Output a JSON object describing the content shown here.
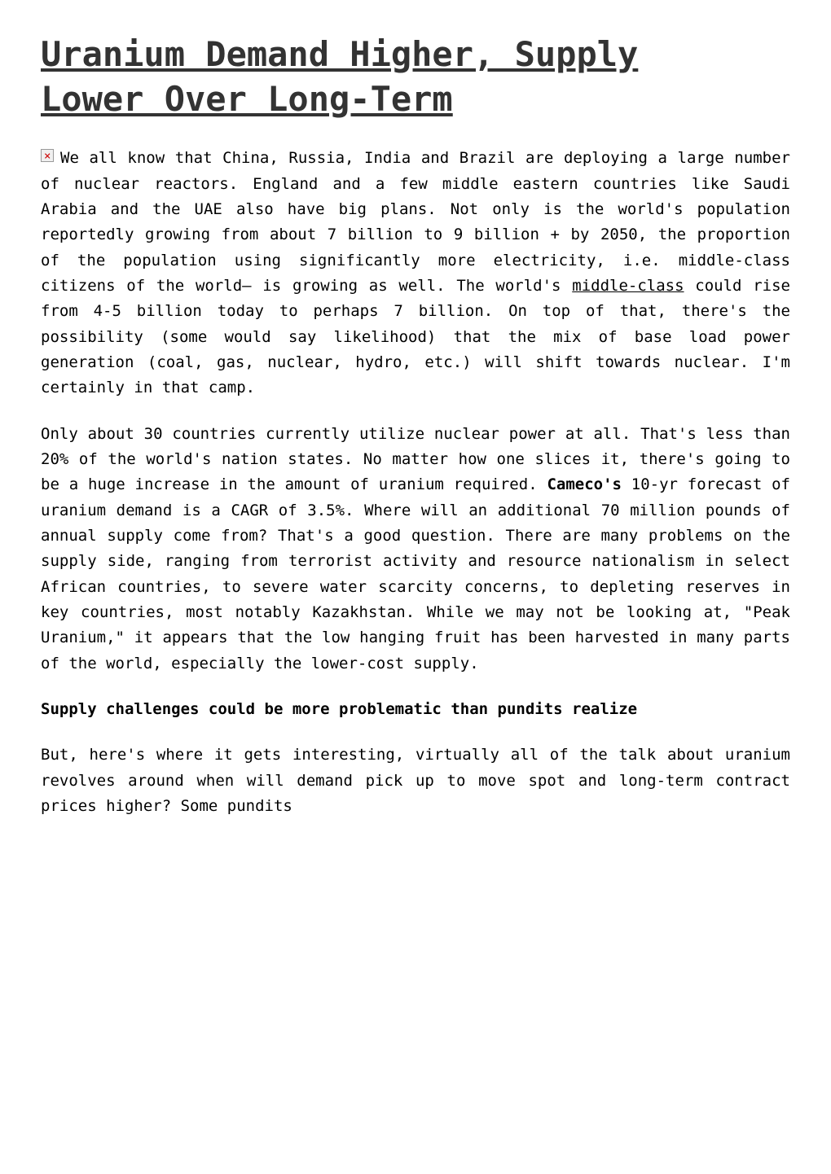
{
  "colors": {
    "background": "#ffffff",
    "text": "#000000",
    "title": "#333333",
    "placeholder_border": "#999999",
    "placeholder_bg": "#f0f0f0",
    "placeholder_x": "#cc0000"
  },
  "typography": {
    "title_fontsize": 42,
    "body_fontsize": 19,
    "line_height": 1.65,
    "font_family": "monospace"
  },
  "article": {
    "title_part1": "Uranium Demand Higher, Supply",
    "title_part2": "Lower Over Long-Term",
    "paragraphs": {
      "p1_part1": "We all know that China, Russia, India and Brazil are deploying a large number of nuclear reactors. England and a few middle eastern countries like Saudi Arabia and the UAE also have big plans. Not only is the world's population reportedly growing from about 7 billion to 9 billion + by 2050, the proportion of the population using significantly more electricity, i.e. middle-class citizens of the world– is growing as well. The world's ",
      "p1_underlined": "middle-class",
      "p1_part2": " could rise from 4-5 billion today to perhaps 7 billion. On top of that, there's the possibility (some would say likelihood) that the mix of base load power generation (coal, gas, nuclear, hydro, etc.) will shift towards nuclear. I'm certainly in that camp.",
      "p2_part1": "Only about 30 countries currently utilize nuclear power at all. That's less than 20% of the world's nation states. No matter how one slices it, there's going to be a huge increase in the amount of uranium required. ",
      "p2_bold": "Cameco's",
      "p2_part2": " 10-yr forecast of uranium demand is a CAGR of 3.5%. Where will an additional 70 million pounds of annual supply come from? That's a good question. There are many problems on the supply side, ranging from terrorist activity and resource nationalism in select African countries, to severe water scarcity concerns, to depleting reserves in key countries, most notably Kazakhstan. While we may not be looking at, \"Peak Uranium,\" it appears that the low hanging fruit has been harvested in many parts of the world, especially the lower-cost supply.",
      "heading": "Supply challenges could be more problematic than pundits realize",
      "p3": "But, here's where it gets interesting, virtually all of the talk about uranium revolves around when will demand pick up to move spot and long-term contract prices higher? Some pundits"
    }
  }
}
